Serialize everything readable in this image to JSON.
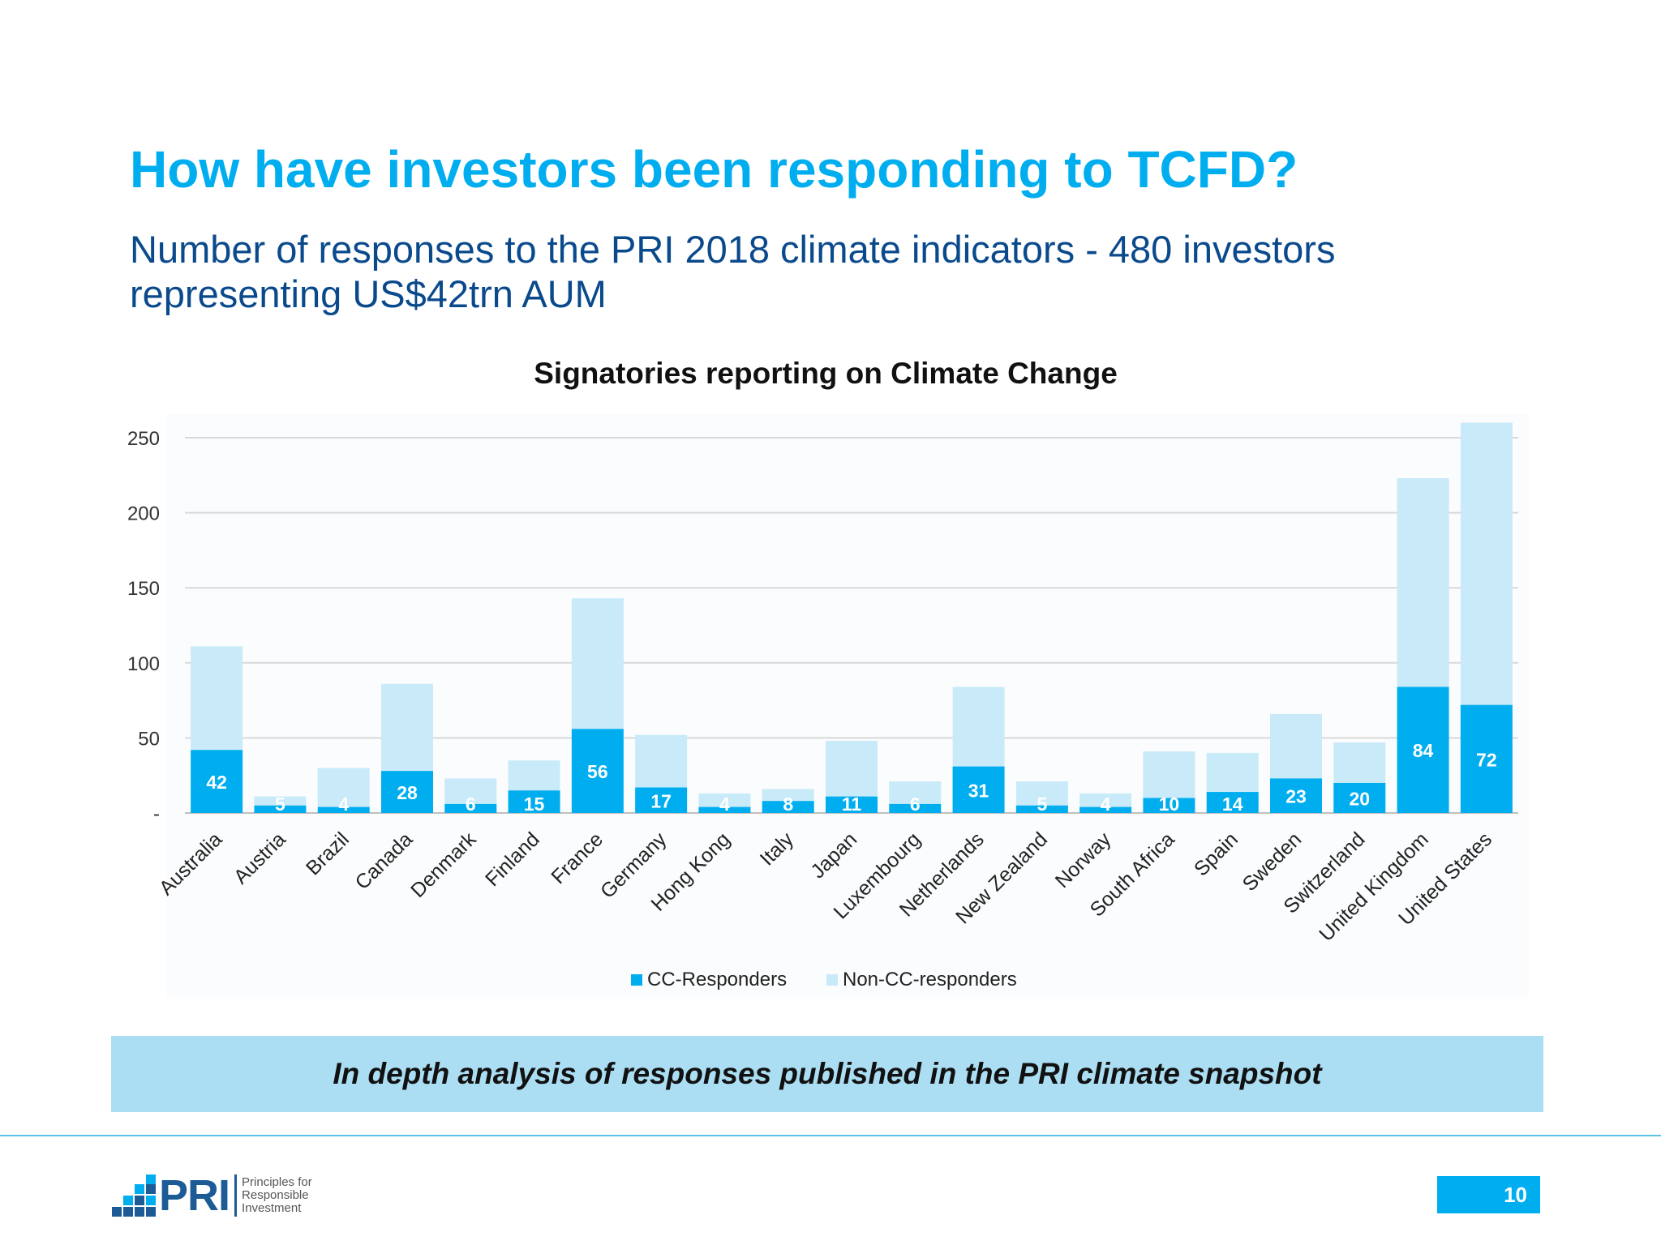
{
  "slide": {
    "title": "How have investors been responding to TCFD?",
    "subtitle": "Number of responses to the PRI 2018 climate indicators - 480 investors representing US$42trn AUM",
    "banner": "In depth analysis of responses published in the PRI climate snapshot",
    "page_number": "10"
  },
  "logo": {
    "text": "PRI",
    "tagline": [
      "Principles for",
      "Responsible",
      "Investment"
    ]
  },
  "colors": {
    "title": "#00AEEF",
    "subtitle": "#0A4A8C",
    "cc_responders": "#00AEEF",
    "non_cc_responders": "#C9EAF8",
    "banner": "#ABDEF3"
  },
  "chart_data": {
    "type": "bar",
    "stacked": true,
    "title": "Signatories reporting on Climate Change",
    "xlabel": "",
    "ylabel": "",
    "ylim": [
      0,
      250
    ],
    "y_ticks": [
      0,
      50,
      100,
      150,
      200,
      250
    ],
    "y_tick_labels": [
      "-",
      "50",
      "100",
      "150",
      "200",
      "250"
    ],
    "grid": true,
    "legend_position": "bottom",
    "categories": [
      "Australia",
      "Austria",
      "Brazil",
      "Canada",
      "Denmark",
      "Finland",
      "France",
      "Germany",
      "Hong Kong",
      "Italy",
      "Japan",
      "Luxembourg",
      "Netherlands",
      "New Zealand",
      "Norway",
      "South Africa",
      "Spain",
      "Sweden",
      "Switzerland",
      "United Kingdom",
      "United States"
    ],
    "series": [
      {
        "name": "CC-Responders",
        "values": [
          42,
          5,
          4,
          28,
          6,
          15,
          56,
          17,
          4,
          8,
          11,
          6,
          31,
          5,
          4,
          10,
          14,
          23,
          20,
          84,
          72
        ],
        "show_labels": true
      },
      {
        "name": "Non-CC-responders",
        "values": [
          69,
          6,
          26,
          58,
          17,
          20,
          87,
          35,
          9,
          8,
          37,
          15,
          53,
          16,
          9,
          31,
          26,
          43,
          27,
          139,
          188
        ],
        "show_labels": false
      }
    ]
  }
}
